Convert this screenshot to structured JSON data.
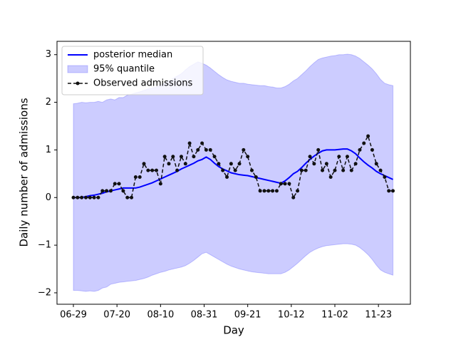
{
  "chart_data": {
    "type": "line",
    "xlabel": "Day",
    "ylabel": "Daily number of admissions",
    "x": [
      0,
      2,
      4,
      6,
      8,
      10,
      12,
      14,
      16,
      18,
      20,
      22,
      24,
      26,
      28,
      30,
      32,
      34,
      36,
      38,
      40,
      42,
      44,
      46,
      48,
      50,
      52,
      54,
      56,
      58,
      60,
      62,
      64,
      66,
      68,
      70,
      72,
      74,
      76,
      78,
      80,
      82,
      84,
      86,
      88,
      90,
      92,
      94,
      96,
      98,
      100,
      102,
      104,
      106,
      108,
      110,
      112,
      114,
      116,
      118,
      120,
      122,
      124,
      126,
      128,
      130,
      132,
      134,
      136,
      138,
      140,
      142,
      144,
      146,
      148,
      150,
      152,
      154
    ],
    "series": [
      {
        "name": "posterior median",
        "style": "line",
        "color": "#0000ff",
        "values": [
          0,
          0,
          0,
          0.02,
          0.04,
          0.05,
          0.07,
          0.09,
          0.12,
          0.14,
          0.16,
          0.18,
          0.2,
          0.2,
          0.2,
          0.2,
          0.22,
          0.25,
          0.28,
          0.31,
          0.35,
          0.39,
          0.43,
          0.47,
          0.51,
          0.55,
          0.6,
          0.64,
          0.68,
          0.72,
          0.77,
          0.8,
          0.85,
          0.8,
          0.72,
          0.65,
          0.6,
          0.56,
          0.52,
          0.5,
          0.48,
          0.47,
          0.46,
          0.44,
          0.42,
          0.4,
          0.38,
          0.36,
          0.34,
          0.32,
          0.3,
          0.35,
          0.42,
          0.5,
          0.55,
          0.63,
          0.72,
          0.8,
          0.87,
          0.93,
          0.98,
          1.0,
          1.0,
          1.0,
          1.01,
          1.02,
          1.02,
          0.98,
          0.92,
          0.83,
          0.75,
          0.68,
          0.62,
          0.55,
          0.5,
          0.46,
          0.42,
          0.38
        ]
      },
      {
        "name": "95% quantile",
        "style": "band",
        "color": "#0000ff",
        "alpha": 0.2,
        "upper": [
          1.97,
          1.98,
          2.0,
          1.99,
          2.0,
          2.0,
          2.02,
          2.0,
          2.05,
          2.07,
          2.05,
          2.1,
          2.1,
          2.15,
          2.17,
          2.2,
          2.22,
          2.25,
          2.28,
          2.3,
          2.32,
          2.36,
          2.4,
          2.45,
          2.5,
          2.55,
          2.6,
          2.68,
          2.75,
          2.8,
          2.85,
          2.82,
          2.78,
          2.72,
          2.65,
          2.58,
          2.52,
          2.47,
          2.44,
          2.42,
          2.4,
          2.4,
          2.38,
          2.37,
          2.36,
          2.35,
          2.35,
          2.33,
          2.32,
          2.3,
          2.3,
          2.33,
          2.38,
          2.45,
          2.5,
          2.58,
          2.66,
          2.75,
          2.83,
          2.9,
          2.93,
          2.95,
          2.97,
          2.98,
          3.0,
          3.0,
          3.01,
          3.0,
          2.97,
          2.92,
          2.85,
          2.78,
          2.7,
          2.6,
          2.48,
          2.4,
          2.37,
          2.35
        ],
        "lower": [
          -1.95,
          -1.95,
          -1.96,
          -1.97,
          -1.96,
          -1.97,
          -1.95,
          -1.9,
          -1.88,
          -1.82,
          -1.8,
          -1.78,
          -1.77,
          -1.76,
          -1.75,
          -1.74,
          -1.72,
          -1.7,
          -1.67,
          -1.63,
          -1.6,
          -1.57,
          -1.55,
          -1.52,
          -1.5,
          -1.48,
          -1.46,
          -1.43,
          -1.38,
          -1.32,
          -1.25,
          -1.18,
          -1.15,
          -1.2,
          -1.25,
          -1.3,
          -1.35,
          -1.4,
          -1.44,
          -1.47,
          -1.5,
          -1.52,
          -1.54,
          -1.56,
          -1.57,
          -1.58,
          -1.59,
          -1.6,
          -1.6,
          -1.6,
          -1.6,
          -1.57,
          -1.52,
          -1.45,
          -1.38,
          -1.3,
          -1.22,
          -1.15,
          -1.1,
          -1.06,
          -1.03,
          -1.01,
          -1.0,
          -0.99,
          -0.98,
          -0.97,
          -0.97,
          -0.98,
          -1.0,
          -1.05,
          -1.12,
          -1.2,
          -1.3,
          -1.42,
          -1.52,
          -1.57,
          -1.6,
          -1.63
        ]
      },
      {
        "name": "Observed admissions",
        "style": "dashed-markers",
        "color": "#111111",
        "values": [
          0,
          0,
          0,
          0,
          0,
          0,
          0,
          0.14,
          0.14,
          0.14,
          0.29,
          0.29,
          0.14,
          0,
          0,
          0.43,
          0.43,
          0.71,
          0.57,
          0.57,
          0.57,
          0.29,
          0.86,
          0.71,
          0.86,
          0.57,
          0.86,
          0.71,
          1.14,
          0.86,
          1.0,
          1.14,
          1.0,
          1.0,
          0.86,
          0.71,
          0.57,
          0.43,
          0.71,
          0.57,
          0.71,
          1.0,
          0.86,
          0.57,
          0.43,
          0.14,
          0.14,
          0.14,
          0.14,
          0.14,
          0.29,
          0.29,
          0.29,
          0,
          0.14,
          0.57,
          0.57,
          0.86,
          0.71,
          1.0,
          0.57,
          0.71,
          0.43,
          0.57,
          0.86,
          0.57,
          0.86,
          0.57,
          0.71,
          1.0,
          1.14,
          1.29,
          1.0,
          0.71,
          0.57,
          0.43,
          0.14,
          0.14
        ]
      }
    ],
    "xlim": [
      -7.9,
      162.4
    ],
    "xticks": [
      {
        "value": 0,
        "label": "06-29"
      },
      {
        "value": 21,
        "label": "07-20"
      },
      {
        "value": 42,
        "label": "08-10"
      },
      {
        "value": 63,
        "label": "08-31"
      },
      {
        "value": 84,
        "label": "09-21"
      },
      {
        "value": 105,
        "label": "10-12"
      },
      {
        "value": 126,
        "label": "11-02"
      },
      {
        "value": 147,
        "label": "11-23"
      }
    ],
    "ylim": [
      -2.24,
      3.28
    ],
    "yticks": [
      {
        "value": -2,
        "label": "−2"
      },
      {
        "value": -1,
        "label": "−1"
      },
      0,
      1,
      2,
      3
    ],
    "legend": "upper left",
    "grid": false
  }
}
